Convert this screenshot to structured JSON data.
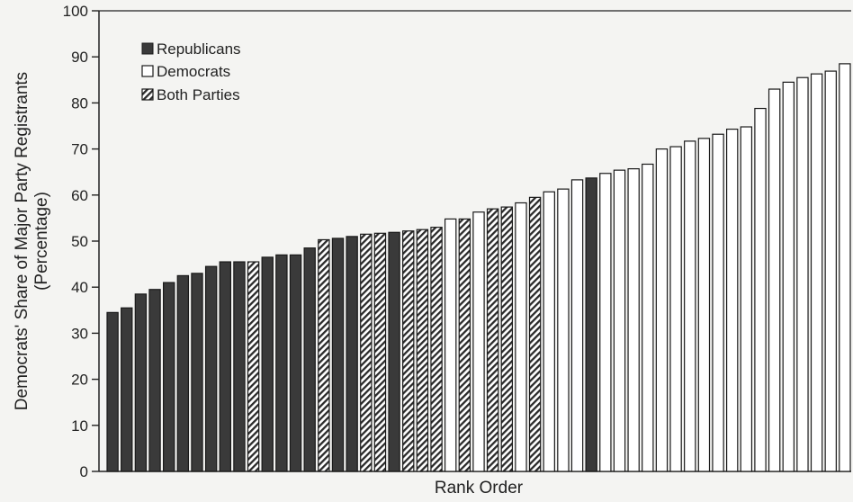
{
  "chart_data": {
    "type": "bar",
    "title": "",
    "xlabel": "Rank Order",
    "ylabel_line1": "Democrats' Share of Major Party Registrants",
    "ylabel_line2": "(Percentage)",
    "ylim": [
      0,
      100
    ],
    "yticks": [
      0,
      10,
      20,
      30,
      40,
      50,
      60,
      70,
      80,
      90,
      100
    ],
    "grid": false,
    "legend_position": "top-left",
    "legend": [
      {
        "key": "R",
        "label": "Republicans"
      },
      {
        "key": "D",
        "label": "Democrats"
      },
      {
        "key": "B",
        "label": "Both Parties"
      }
    ],
    "colors": {
      "R": "#3a3a3a",
      "D": "#ffffff",
      "B": "hatch",
      "outline": "#1a1a1a"
    },
    "values": [
      34.5,
      35.5,
      38.5,
      39.5,
      41,
      42.5,
      43,
      44.5,
      45.5,
      45.5,
      45.5,
      46.5,
      47,
      47,
      48.5,
      50.3,
      50.6,
      51,
      51.5,
      51.7,
      51.9,
      52.2,
      52.5,
      53,
      54.8,
      54.8,
      56.3,
      57,
      57.4,
      58.3,
      59.5,
      60.7,
      61.3,
      63.3,
      63.7,
      64.7,
      65.4,
      65.7,
      66.7,
      70,
      70.5,
      71.7,
      72.3,
      73.2,
      74.3,
      74.8,
      78.8,
      83,
      84.5,
      85.5,
      86.3,
      86.9,
      88.5
    ],
    "parties": [
      "R",
      "R",
      "R",
      "R",
      "R",
      "R",
      "R",
      "R",
      "R",
      "R",
      "B",
      "R",
      "R",
      "R",
      "R",
      "B",
      "R",
      "R",
      "B",
      "B",
      "R",
      "B",
      "B",
      "B",
      "D",
      "B",
      "D",
      "B",
      "B",
      "D",
      "B",
      "D",
      "D",
      "D",
      "R",
      "D",
      "D",
      "D",
      "D",
      "D",
      "D",
      "D",
      "D",
      "D",
      "D",
      "D",
      "D",
      "D",
      "D",
      "D",
      "D",
      "D",
      "D"
    ]
  }
}
